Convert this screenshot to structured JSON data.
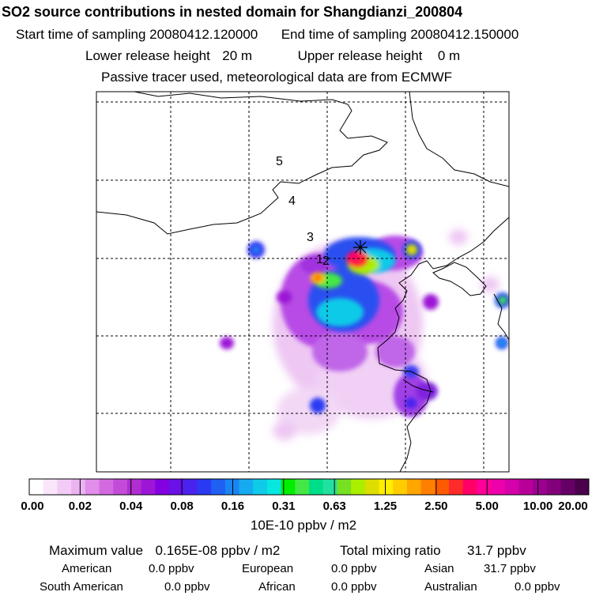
{
  "header": {
    "title": "SO2 source contributions in nested domain for Shangdianzi_200804",
    "start_label": "Start time of sampling",
    "start_value": "20080412.120000",
    "end_label": "End time of sampling",
    "end_value": "20080412.150000",
    "lower_label": "Lower release height",
    "lower_value": "20 m",
    "upper_label": "Upper release height",
    "upper_value": "0 m",
    "tracer_note": "Passive tracer used, meteorological data are from ECMWF"
  },
  "colorbar": {
    "tick_labels": [
      "0.00",
      "0.02",
      "0.04",
      "0.08",
      "0.16",
      "0.31",
      "0.63",
      "1.25",
      "2.50",
      "5.00",
      "10.00",
      "20.00"
    ],
    "colors": [
      "#ffffff",
      "#f9e6fb",
      "#f2ccf6",
      "#ebb3f2",
      "#e08ee9",
      "#d46ae0",
      "#c44bd8",
      "#b02ed0",
      "#9d16d6",
      "#8300e0",
      "#6a10e8",
      "#4a22ee",
      "#2a3af2",
      "#1f5ff2",
      "#1885f2",
      "#16aaf0",
      "#10cbe8",
      "#08e6e0",
      "#00ee00",
      "#44e844",
      "#00dd88",
      "#22e0a0",
      "#77e022",
      "#aaee00",
      "#dddd00",
      "#ffee00",
      "#ffcc00",
      "#ffa600",
      "#ff8000",
      "#ff5a00",
      "#ff2a2a",
      "#ff0066",
      "#ff0099",
      "#ee00aa",
      "#d400aa",
      "#b80099",
      "#9c0090",
      "#82007a",
      "#660066",
      "#4a004a"
    ],
    "unit": "10E-10 ppbv / m2"
  },
  "map": {
    "gridline_style": "dashed",
    "contour_labels": [
      "5",
      "4",
      "3",
      "2",
      "1"
    ],
    "station_marker": "star-icon"
  },
  "stats": {
    "max_label": "Maximum value",
    "max_value": "0.165E-08 ppbv / m2",
    "total_label": "Total mixing ratio",
    "total_value": "31.7 ppbv"
  },
  "regions": [
    {
      "name": "American",
      "value": "0.0 ppbv"
    },
    {
      "name": "European",
      "value": "0.0 ppbv"
    },
    {
      "name": "Asian",
      "value": "31.7 ppbv"
    },
    {
      "name": "South American",
      "value": "0.0 ppbv"
    },
    {
      "name": "African",
      "value": "0.0 ppbv"
    },
    {
      "name": "Australian",
      "value": "0.0 ppbv"
    }
  ],
  "chart_data": {
    "type": "heatmap",
    "title": "SO2 source contributions in nested domain for Shangdianzi_200804",
    "colorbar_ticks": [
      0.0,
      0.02,
      0.04,
      0.08,
      0.16,
      0.31,
      0.63,
      1.25,
      2.5,
      5.0,
      10.0,
      20.0
    ],
    "colorbar_unit": "10E-10 ppbv / m2",
    "max_value": "0.165E-08 ppbv / m2",
    "total_mixing_ratio": "31.7 ppbv",
    "grid": true
  }
}
